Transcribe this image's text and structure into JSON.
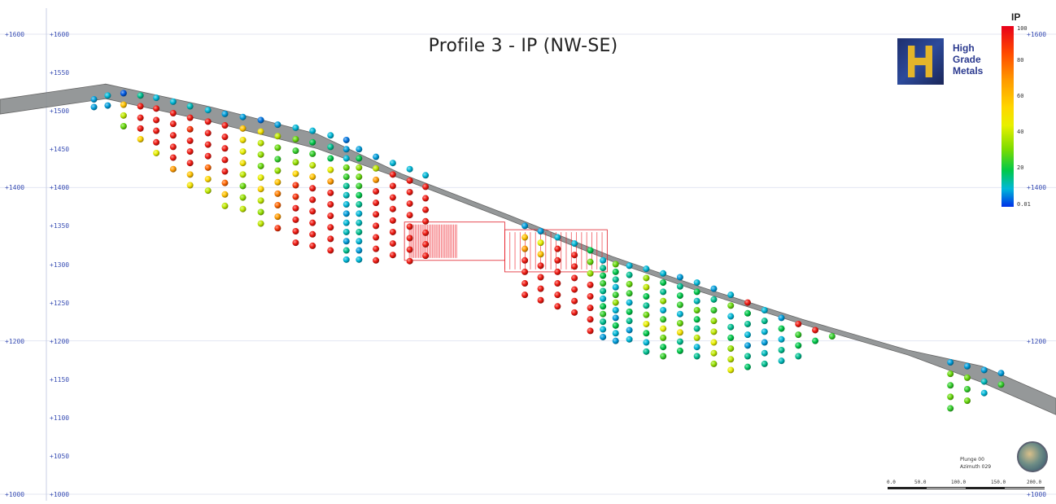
{
  "title": "Profile 3 - IP (NW-SE)",
  "logo": {
    "line1": "High",
    "line2": "Grade",
    "line3": "Metals"
  },
  "legend": {
    "title": "IP",
    "ticks": [
      "100",
      "80",
      "60",
      "40",
      "20",
      "0.01"
    ],
    "colors": [
      "#e8001a",
      "#ff4a00",
      "#ff9a00",
      "#ffd600",
      "#e8f000",
      "#7ddc00",
      "#00c84a",
      "#00b8d8",
      "#0030e8"
    ]
  },
  "orientation": {
    "plunge": "Plunge 00",
    "azimuth": "Azimuth 029"
  },
  "scale_bar": {
    "labels": [
      "0.0",
      "50.0",
      "100.0",
      "150.0",
      "200.0"
    ]
  },
  "axes": {
    "left_outer": [
      "+1600",
      "+1400",
      "+1200",
      "+1000"
    ],
    "left_inner": [
      "+1600",
      "+1550",
      "+1500",
      "+1450",
      "+1400",
      "+1350",
      "+1300",
      "+1250",
      "+1200",
      "+1150",
      "+1100",
      "+1050",
      "+1000"
    ],
    "right": [
      "+1600",
      "+1400",
      "+1200",
      "+1000"
    ]
  },
  "chart_data": {
    "type": "scatter",
    "title": "Profile 3 - IP (NW-SE)",
    "legend_title": "IP",
    "colorscale": {
      "min": 0.01,
      "max": 100
    },
    "ylabel": "",
    "ylim": [
      1000,
      1600
    ],
    "y_ticks": [
      1000,
      1050,
      1100,
      1150,
      1200,
      1250,
      1300,
      1350,
      1400,
      1450,
      1500,
      1550,
      1600
    ],
    "xlim": [
      0,
      1
    ],
    "surface": [
      [
        0.0,
        1515
      ],
      [
        0.05,
        1525
      ],
      [
        0.1,
        1535
      ],
      [
        0.2,
        1505
      ],
      [
        0.3,
        1470
      ],
      [
        0.38,
        1418
      ],
      [
        0.48,
        1365
      ],
      [
        0.58,
        1310
      ],
      [
        0.66,
        1272
      ],
      [
        0.76,
        1228
      ],
      [
        0.86,
        1188
      ],
      [
        0.93,
        1167
      ],
      [
        1.0,
        1125
      ]
    ],
    "columns": [
      {
        "x": 0.089,
        "z": [
          1515,
          1505
        ]
      },
      {
        "x": 0.102,
        "z": [
          1520,
          1507
        ]
      },
      {
        "x": 0.117,
        "z": [
          1523,
          1508,
          1494,
          1480
        ]
      },
      {
        "x": 0.133,
        "z": [
          1520,
          1506,
          1491,
          1477,
          1463
        ]
      },
      {
        "x": 0.148,
        "z": [
          1517,
          1503,
          1488,
          1474,
          1459,
          1445
        ]
      },
      {
        "x": 0.164,
        "z": [
          1512,
          1497,
          1483,
          1468,
          1453,
          1439,
          1424
        ]
      },
      {
        "x": 0.18,
        "z": [
          1506,
          1491,
          1476,
          1461,
          1447,
          1432,
          1417,
          1403
        ]
      },
      {
        "x": 0.197,
        "z": [
          1501,
          1486,
          1471,
          1456,
          1441,
          1426,
          1411,
          1396
        ]
      },
      {
        "x": 0.213,
        "z": [
          1496,
          1481,
          1466,
          1451,
          1436,
          1421,
          1406,
          1391,
          1376
        ]
      },
      {
        "x": 0.23,
        "z": [
          1492,
          1477,
          1462,
          1447,
          1432,
          1417,
          1402,
          1387,
          1372
        ]
      },
      {
        "x": 0.247,
        "z": [
          1488,
          1473,
          1458,
          1443,
          1428,
          1413,
          1398,
          1383,
          1368,
          1353
        ]
      },
      {
        "x": 0.263,
        "z": [
          1482,
          1467,
          1452,
          1437,
          1422,
          1407,
          1392,
          1377,
          1362,
          1347
        ]
      },
      {
        "x": 0.28,
        "z": [
          1478,
          1463,
          1448,
          1433,
          1418,
          1403,
          1388,
          1373,
          1358,
          1343,
          1328
        ]
      },
      {
        "x": 0.296,
        "z": [
          1474,
          1459,
          1444,
          1429,
          1414,
          1399,
          1384,
          1369,
          1354,
          1339,
          1324
        ]
      },
      {
        "x": 0.313,
        "z": [
          1468,
          1453,
          1438,
          1423,
          1408,
          1393,
          1378,
          1363,
          1348,
          1333,
          1318
        ]
      },
      {
        "x": 0.328,
        "z": [
          1462,
          1450,
          1438,
          1426,
          1414,
          1402,
          1390,
          1378,
          1366,
          1354,
          1342,
          1330,
          1318,
          1306
        ]
      },
      {
        "x": 0.34,
        "z": [
          1450,
          1438,
          1426,
          1414,
          1402,
          1390,
          1378,
          1366,
          1354,
          1342,
          1330,
          1318,
          1306
        ]
      },
      {
        "x": 0.356,
        "z": [
          1440,
          1425,
          1410,
          1395,
          1380,
          1365,
          1350,
          1335,
          1320,
          1305
        ]
      },
      {
        "x": 0.372,
        "z": [
          1432,
          1417,
          1402,
          1387,
          1372,
          1357,
          1342,
          1327,
          1312
        ]
      },
      {
        "x": 0.388,
        "z": [
          1424,
          1409,
          1394,
          1379,
          1364,
          1349,
          1334,
          1319,
          1304
        ]
      },
      {
        "x": 0.403,
        "z": [
          1416,
          1401,
          1386,
          1371,
          1356,
          1341,
          1326,
          1311
        ]
      },
      {
        "x": 0.497,
        "z": [
          1350,
          1335,
          1320,
          1305,
          1290,
          1275,
          1260
        ]
      },
      {
        "x": 0.512,
        "z": [
          1343,
          1328,
          1313,
          1298,
          1283,
          1268,
          1253
        ]
      },
      {
        "x": 0.528,
        "z": [
          1335,
          1320,
          1305,
          1290,
          1275,
          1260,
          1245
        ]
      },
      {
        "x": 0.544,
        "z": [
          1327,
          1312,
          1297,
          1282,
          1267,
          1252,
          1237
        ]
      },
      {
        "x": 0.559,
        "z": [
          1318,
          1303,
          1288,
          1273,
          1258,
          1243,
          1228,
          1213
        ]
      },
      {
        "x": 0.571,
        "z": [
          1305,
          1295,
          1285,
          1275,
          1265,
          1255,
          1245,
          1235,
          1225,
          1215,
          1205
        ]
      },
      {
        "x": 0.583,
        "z": [
          1300,
          1290,
          1280,
          1270,
          1260,
          1250,
          1240,
          1230,
          1220,
          1210,
          1200
        ]
      },
      {
        "x": 0.596,
        "z": [
          1298,
          1286,
          1274,
          1262,
          1250,
          1238,
          1226,
          1214,
          1202
        ]
      },
      {
        "x": 0.612,
        "z": [
          1294,
          1282,
          1270,
          1258,
          1246,
          1234,
          1222,
          1210,
          1198,
          1186
        ]
      },
      {
        "x": 0.628,
        "z": [
          1288,
          1276,
          1264,
          1252,
          1240,
          1228,
          1216,
          1204,
          1192,
          1180
        ]
      },
      {
        "x": 0.644,
        "z": [
          1283,
          1271,
          1259,
          1247,
          1235,
          1223,
          1211,
          1199,
          1187
        ]
      },
      {
        "x": 0.66,
        "z": [
          1276,
          1264,
          1252,
          1240,
          1228,
          1216,
          1204,
          1192,
          1180
        ]
      },
      {
        "x": 0.676,
        "z": [
          1268,
          1254,
          1240,
          1226,
          1212,
          1198,
          1184,
          1170
        ]
      },
      {
        "x": 0.692,
        "z": [
          1260,
          1246,
          1232,
          1218,
          1204,
          1190,
          1176,
          1162
        ]
      },
      {
        "x": 0.708,
        "z": [
          1250,
          1236,
          1222,
          1208,
          1194,
          1180,
          1166
        ]
      },
      {
        "x": 0.724,
        "z": [
          1240,
          1226,
          1212,
          1198,
          1184,
          1170
        ]
      },
      {
        "x": 0.74,
        "z": [
          1230,
          1216,
          1202,
          1188,
          1174
        ]
      },
      {
        "x": 0.756,
        "z": [
          1222,
          1208,
          1194,
          1180
        ]
      },
      {
        "x": 0.772,
        "z": [
          1214,
          1200
        ]
      },
      {
        "x": 0.788,
        "z": [
          1206
        ]
      },
      {
        "x": 0.9,
        "z": [
          1172,
          1157,
          1142,
          1127,
          1112
        ]
      },
      {
        "x": 0.916,
        "z": [
          1167,
          1152,
          1137,
          1122
        ]
      },
      {
        "x": 0.932,
        "z": [
          1162,
          1147,
          1132
        ]
      },
      {
        "x": 0.948,
        "z": [
          1158,
          1143
        ]
      }
    ],
    "ip_columns": [
      [
        8,
        8
      ],
      [
        10,
        8
      ],
      [
        3,
        60,
        40,
        30
      ],
      [
        15,
        95,
        95,
        95,
        55
      ],
      [
        10,
        95,
        95,
        95,
        95,
        45
      ],
      [
        10,
        95,
        95,
        95,
        95,
        95,
        70
      ],
      [
        12,
        95,
        90,
        95,
        95,
        95,
        60,
        50
      ],
      [
        10,
        95,
        95,
        95,
        95,
        80,
        55,
        40
      ],
      [
        8,
        95,
        95,
        95,
        95,
        95,
        80,
        60,
        40
      ],
      [
        8,
        60,
        50,
        45,
        50,
        40,
        30,
        35,
        40
      ],
      [
        5,
        50,
        40,
        35,
        30,
        45,
        55,
        40,
        35,
        40
      ],
      [
        8,
        40,
        30,
        25,
        35,
        60,
        75,
        80,
        70,
        90
      ],
      [
        10,
        30,
        25,
        35,
        55,
        90,
        90,
        95,
        95,
        95,
        95
      ],
      [
        10,
        20,
        25,
        40,
        60,
        95,
        95,
        95,
        95,
        95,
        95
      ],
      [
        10,
        15,
        20,
        45,
        70,
        95,
        95,
        95,
        95,
        95,
        95
      ],
      [
        5,
        8,
        10,
        30,
        25,
        15,
        12,
        10,
        8,
        10,
        12,
        8,
        15,
        10
      ],
      [
        8,
        20,
        35,
        30,
        25,
        20,
        15,
        10,
        12,
        15,
        10,
        8,
        10
      ],
      [
        8,
        40,
        70,
        95,
        95,
        95,
        95,
        95,
        95,
        95
      ],
      [
        10,
        95,
        95,
        95,
        95,
        95,
        95,
        95,
        95
      ],
      [
        10,
        95,
        95,
        95,
        95,
        95,
        95,
        95,
        95
      ],
      [
        10,
        95,
        95,
        95,
        95,
        95,
        95,
        95
      ],
      [
        8,
        60,
        70,
        95,
        95,
        95,
        95
      ],
      [
        8,
        45,
        60,
        95,
        95,
        95,
        95
      ],
      [
        10,
        95,
        95,
        95,
        95,
        95,
        95
      ],
      [
        10,
        95,
        95,
        95,
        95,
        95,
        95
      ],
      [
        20,
        30,
        35,
        95,
        95,
        95,
        95,
        95
      ],
      [
        10,
        15,
        20,
        25,
        15,
        10,
        20,
        25,
        15,
        10,
        8
      ],
      [
        30,
        20,
        15,
        10,
        25,
        35,
        10,
        8,
        20,
        10,
        8
      ],
      [
        10,
        15,
        30,
        25,
        10,
        20,
        15,
        8,
        10
      ],
      [
        10,
        35,
        40,
        20,
        15,
        30,
        45,
        20,
        10,
        15
      ],
      [
        10,
        20,
        15,
        35,
        10,
        25,
        45,
        30,
        20,
        25
      ],
      [
        8,
        15,
        20,
        25,
        10,
        30,
        50,
        15,
        20
      ],
      [
        10,
        20,
        12,
        30,
        20,
        15,
        40,
        10,
        15
      ],
      [
        8,
        15,
        25,
        35,
        40,
        45,
        40,
        35
      ],
      [
        10,
        30,
        10,
        15,
        20,
        35,
        40,
        45
      ],
      [
        95,
        20,
        15,
        10,
        8,
        15,
        18
      ],
      [
        10,
        15,
        10,
        8,
        12,
        15
      ],
      [
        8,
        20,
        10,
        15,
        12
      ],
      [
        95,
        25,
        20,
        15
      ],
      [
        95,
        20
      ],
      [
        25
      ],
      [
        8,
        30,
        25,
        30,
        25
      ],
      [
        8,
        30,
        25,
        30
      ],
      [
        8,
        12,
        10
      ],
      [
        8,
        25
      ]
    ],
    "high_ip_zones": [
      {
        "x_range": [
          0.383,
          0.478
        ],
        "z_range": [
          1305,
          1355
        ]
      },
      {
        "x_range": [
          0.478,
          0.575
        ],
        "z_range": [
          1290,
          1345
        ]
      }
    ]
  }
}
